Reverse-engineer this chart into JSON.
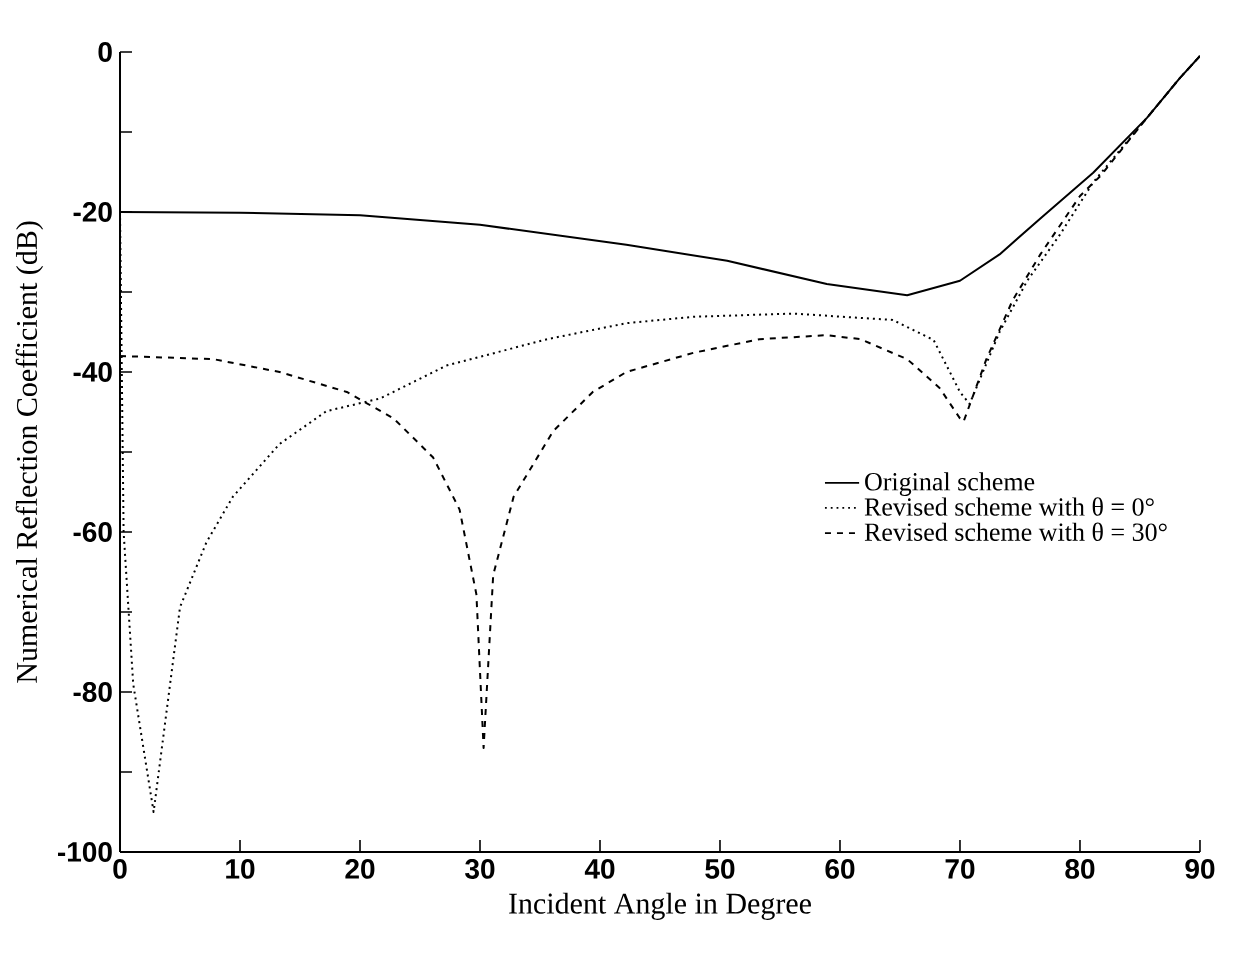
{
  "chart_data": {
    "type": "line",
    "xlabel": "Incident Angle in Degree",
    "ylabel": "Numerical Reflection Coefficient (dB)",
    "xlim": [
      0,
      90
    ],
    "ylim": [
      -100,
      0
    ],
    "xticks": [
      0,
      10,
      20,
      30,
      40,
      50,
      60,
      70,
      80,
      90
    ],
    "yticks": [
      -100,
      {
        "value": -90,
        "label": null
      },
      -80,
      {
        "value": -70,
        "label": null
      },
      -60,
      {
        "value": -50,
        "label": null
      },
      -40,
      {
        "value": -30,
        "label": null
      },
      -20,
      {
        "value": -10,
        "label": null
      },
      0
    ],
    "legend": "right",
    "grid": false,
    "marker": "none",
    "series": [
      {
        "name": "Original scheme",
        "color": "#000000",
        "line_style": "solid",
        "x": [
          0,
          10,
          20,
          30,
          42.2,
          50.6,
          58.9,
          65.6,
          70,
          73.3,
          76.7,
          81.1,
          85.6,
          88.3,
          90
        ],
        "values": [
          -20,
          -20.1,
          -20.4,
          -21.6,
          -24.1,
          -26.1,
          -29,
          -30.4,
          -28.6,
          -25.3,
          -20.8,
          -15.1,
          -8.2,
          -3.3,
          -0.5
        ]
      },
      {
        "name": "Revised scheme with θ = 0°",
        "color": "#000000",
        "line_style": "dotted",
        "x": [
          0,
          0.3,
          1.1,
          2.8,
          5,
          7.2,
          9.4,
          13.3,
          17.2,
          21.7,
          27.2,
          35.6,
          42.2,
          47.8,
          56.1,
          64.4,
          67.8,
          70,
          70.8,
          73.3,
          75.6,
          78.3,
          81.1,
          85.6,
          88.3,
          90
        ],
        "values": [
          -20,
          -60,
          -79,
          -95,
          -69.4,
          -61.3,
          -55.6,
          -49,
          -44.9,
          -43.3,
          -39.2,
          -35.9,
          -33.9,
          -33.1,
          -32.7,
          -33.5,
          -36,
          -42.5,
          -44,
          -35,
          -28.6,
          -22.9,
          -16.3,
          -8.2,
          -3.3,
          -0.5
        ]
      },
      {
        "name": "Revised scheme with θ = 30°",
        "color": "#000000",
        "line_style": "dashed",
        "x": [
          0,
          7.8,
          13.3,
          18.9,
          22.8,
          26.1,
          28.3,
          29.7,
          30.3,
          31.1,
          32.8,
          36.1,
          39.4,
          42.2,
          47.8,
          53.3,
          58.9,
          61.7,
          65.6,
          68.3,
          70,
          70.3,
          72.2,
          74.4,
          76.7,
          80,
          81.7,
          85.6,
          88.3,
          90
        ],
        "values": [
          -38,
          -38.4,
          -40,
          -42.5,
          -45.8,
          -50.7,
          -57.2,
          -67.8,
          -87,
          -65.4,
          -55.6,
          -47.4,
          -42.5,
          -40,
          -37.6,
          -35.9,
          -35.4,
          -35.9,
          -38.4,
          -42,
          -45.8,
          -46.2,
          -38.4,
          -31,
          -25.3,
          -18,
          -15.5,
          -8.2,
          -3.3,
          -0.5
        ]
      }
    ]
  }
}
